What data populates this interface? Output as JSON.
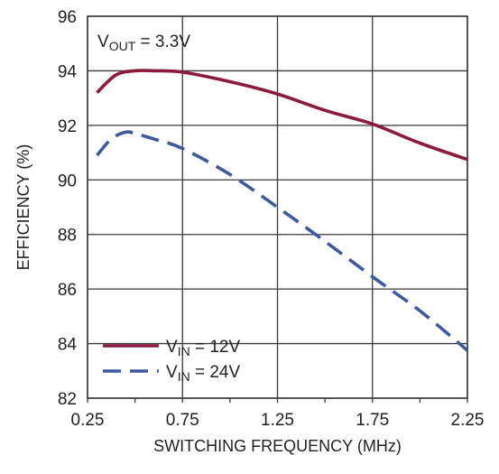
{
  "chart_data": {
    "type": "line",
    "xlabel": "SWITCHING FREQUENCY (MHz)",
    "ylabel": "EFFICIENCY (%)",
    "xlim": [
      0.25,
      2.25
    ],
    "ylim": [
      82,
      96
    ],
    "xticks": [
      "0.25",
      "0.75",
      "1.25",
      "1.75",
      "2.25"
    ],
    "yticks": [
      "82",
      "84",
      "86",
      "88",
      "90",
      "92",
      "94",
      "96"
    ],
    "grid": true,
    "annotation": {
      "main": "V",
      "sub": "OUT",
      "rest": " = 3.3V"
    },
    "legend_position": "bottom-left",
    "colors": {
      "series_12v": "#8b1a3c",
      "series_24v": "#3f5a9c",
      "grid": "#3a3a3a"
    },
    "series": [
      {
        "name": "VIN = 12V",
        "label": {
          "main": "V",
          "sub": "IN",
          "rest": " = 12V"
        },
        "style": "solid",
        "x": [
          0.3,
          0.4,
          0.5,
          0.6,
          0.75,
          1.0,
          1.25,
          1.5,
          1.75,
          2.0,
          2.25
        ],
        "y": [
          93.2,
          93.85,
          94.0,
          94.0,
          93.95,
          93.6,
          93.15,
          92.55,
          92.05,
          91.35,
          90.75
        ]
      },
      {
        "name": "VIN = 24V",
        "label": {
          "main": "V",
          "sub": "IN",
          "rest": " = 24V"
        },
        "style": "dashed",
        "x": [
          0.3,
          0.375,
          0.45,
          0.5,
          0.6,
          0.75,
          1.0,
          1.25,
          1.5,
          1.75,
          2.0,
          2.25
        ],
        "y": [
          90.9,
          91.5,
          91.75,
          91.7,
          91.5,
          91.15,
          90.2,
          89.0,
          87.75,
          86.45,
          85.2,
          83.75
        ]
      }
    ]
  }
}
